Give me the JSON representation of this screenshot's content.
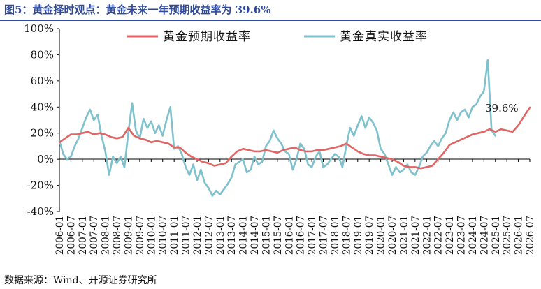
{
  "title": "图5：黄金择时观点：黄金未来一年预期收益率为 39.6%",
  "source": "数据来源：Wind、开源证券研究所",
  "colors": {
    "title": "#2e4a9a",
    "expected": "#e06666",
    "realized": "#7fc1cc",
    "axis": "#000000"
  },
  "chart_data": {
    "type": "line",
    "title": "图5：黄金择时观点：黄金未来一年预期收益率为 39.6%",
    "xlabel": "",
    "ylabel": "",
    "ylim": [
      -40,
      100
    ],
    "yticks": [
      -40,
      -20,
      0,
      20,
      40,
      60,
      80,
      100
    ],
    "ytick_labels": [
      "-40%",
      "-20%",
      "0%",
      "20%",
      "40%",
      "60%",
      "80%",
      "100%"
    ],
    "xlim": [
      "2006-01",
      "2026-07"
    ],
    "xtick_labels": [
      "2006-01",
      "2006-07",
      "2007-01",
      "2007-07",
      "2008-01",
      "2008-07",
      "2009-01",
      "2009-07",
      "2010-01",
      "2010-07",
      "2011-01",
      "2011-07",
      "2012-01",
      "2012-07",
      "2013-01",
      "2013-07",
      "2014-01",
      "2014-07",
      "2015-01",
      "2015-07",
      "2016-01",
      "2016-07",
      "2017-01",
      "2017-07",
      "2018-01",
      "2018-07",
      "2019-01",
      "2019-07",
      "2020-01",
      "2020-07",
      "2021-01",
      "2021-07",
      "2022-01",
      "2022-07",
      "2023-01",
      "2023-07",
      "2024-01",
      "2024-07",
      "2025-01",
      "2025-07",
      "2026-01",
      "2026-07"
    ],
    "grid": false,
    "legend_position": "top",
    "annotations": [
      {
        "text": "39.6%",
        "x": "2026-07",
        "y": 39.6
      }
    ],
    "series": [
      {
        "name": "黄金预期收益率",
        "color": "#e06666",
        "points": [
          [
            "2006-01",
            13
          ],
          [
            "2006-04",
            16
          ],
          [
            "2006-07",
            19
          ],
          [
            "2006-10",
            19
          ],
          [
            "2007-01",
            20
          ],
          [
            "2007-04",
            21
          ],
          [
            "2007-07",
            19
          ],
          [
            "2007-10",
            20
          ],
          [
            "2008-01",
            19
          ],
          [
            "2008-04",
            17
          ],
          [
            "2008-07",
            16
          ],
          [
            "2008-10",
            17
          ],
          [
            "2009-01",
            24
          ],
          [
            "2009-04",
            18
          ],
          [
            "2009-07",
            16
          ],
          [
            "2009-10",
            15
          ],
          [
            "2010-01",
            13
          ],
          [
            "2010-04",
            14
          ],
          [
            "2010-07",
            13
          ],
          [
            "2010-10",
            12
          ],
          [
            "2011-01",
            9
          ],
          [
            "2011-04",
            9
          ],
          [
            "2011-07",
            5
          ],
          [
            "2011-10",
            2
          ],
          [
            "2012-01",
            0
          ],
          [
            "2012-04",
            -2
          ],
          [
            "2012-07",
            -3
          ],
          [
            "2012-10",
            -5
          ],
          [
            "2013-01",
            -4
          ],
          [
            "2013-04",
            -3
          ],
          [
            "2013-07",
            2
          ],
          [
            "2013-10",
            6
          ],
          [
            "2014-01",
            8
          ],
          [
            "2014-04",
            7
          ],
          [
            "2014-07",
            6
          ],
          [
            "2014-10",
            6
          ],
          [
            "2015-01",
            7
          ],
          [
            "2015-04",
            6
          ],
          [
            "2015-07",
            5
          ],
          [
            "2015-10",
            7
          ],
          [
            "2016-01",
            8
          ],
          [
            "2016-04",
            9
          ],
          [
            "2016-07",
            7
          ],
          [
            "2016-10",
            6
          ],
          [
            "2017-01",
            6
          ],
          [
            "2017-04",
            7
          ],
          [
            "2017-07",
            7
          ],
          [
            "2017-10",
            8
          ],
          [
            "2018-01",
            9
          ],
          [
            "2018-04",
            10
          ],
          [
            "2018-07",
            12
          ],
          [
            "2018-10",
            9
          ],
          [
            "2019-01",
            6
          ],
          [
            "2019-04",
            4
          ],
          [
            "2019-07",
            3
          ],
          [
            "2019-10",
            3
          ],
          [
            "2020-01",
            2
          ],
          [
            "2020-04",
            1
          ],
          [
            "2020-07",
            0
          ],
          [
            "2020-10",
            -2
          ],
          [
            "2021-01",
            -5
          ],
          [
            "2021-04",
            -6
          ],
          [
            "2021-07",
            -6
          ],
          [
            "2021-10",
            -7
          ],
          [
            "2022-01",
            -6
          ],
          [
            "2022-04",
            -5
          ],
          [
            "2022-07",
            0
          ],
          [
            "2022-10",
            5
          ],
          [
            "2023-01",
            11
          ],
          [
            "2023-04",
            13
          ],
          [
            "2023-07",
            15
          ],
          [
            "2023-10",
            17
          ],
          [
            "2024-01",
            19
          ],
          [
            "2024-04",
            20
          ],
          [
            "2024-07",
            21
          ],
          [
            "2024-10",
            23
          ],
          [
            "2025-01",
            21
          ],
          [
            "2025-04",
            23
          ],
          [
            "2025-07",
            22
          ],
          [
            "2025-10",
            21
          ],
          [
            "2026-01",
            26
          ],
          [
            "2026-04",
            33
          ],
          [
            "2026-07",
            39.6
          ]
        ]
      },
      {
        "name": "黄金真实收益率",
        "color": "#7fc1cc",
        "points": [
          [
            "2006-01",
            14
          ],
          [
            "2006-03",
            4
          ],
          [
            "2006-05",
            0
          ],
          [
            "2006-07",
            2
          ],
          [
            "2006-09",
            10
          ],
          [
            "2006-11",
            16
          ],
          [
            "2007-01",
            24
          ],
          [
            "2007-03",
            32
          ],
          [
            "2007-05",
            38
          ],
          [
            "2007-07",
            30
          ],
          [
            "2007-09",
            34
          ],
          [
            "2007-11",
            18
          ],
          [
            "2008-01",
            6
          ],
          [
            "2008-03",
            -12
          ],
          [
            "2008-05",
            2
          ],
          [
            "2008-07",
            -3
          ],
          [
            "2008-09",
            2
          ],
          [
            "2008-11",
            -6
          ],
          [
            "2009-01",
            20
          ],
          [
            "2009-03",
            43
          ],
          [
            "2009-05",
            22
          ],
          [
            "2009-07",
            16
          ],
          [
            "2009-09",
            31
          ],
          [
            "2009-11",
            24
          ],
          [
            "2010-01",
            29
          ],
          [
            "2010-03",
            20
          ],
          [
            "2010-05",
            26
          ],
          [
            "2010-07",
            18
          ],
          [
            "2010-09",
            30
          ],
          [
            "2010-11",
            40
          ],
          [
            "2011-01",
            8
          ],
          [
            "2011-03",
            10
          ],
          [
            "2011-05",
            4
          ],
          [
            "2011-07",
            -6
          ],
          [
            "2011-09",
            -12
          ],
          [
            "2011-11",
            -4
          ],
          [
            "2012-01",
            -16
          ],
          [
            "2012-03",
            -8
          ],
          [
            "2012-05",
            -18
          ],
          [
            "2012-07",
            -22
          ],
          [
            "2012-09",
            -28
          ],
          [
            "2012-11",
            -24
          ],
          [
            "2013-01",
            -27
          ],
          [
            "2013-03",
            -23
          ],
          [
            "2013-05",
            -19
          ],
          [
            "2013-07",
            -14
          ],
          [
            "2013-09",
            -4
          ],
          [
            "2013-11",
            -2
          ],
          [
            "2014-01",
            0
          ],
          [
            "2014-03",
            -10
          ],
          [
            "2014-05",
            -8
          ],
          [
            "2014-07",
            2
          ],
          [
            "2014-09",
            -4
          ],
          [
            "2014-11",
            -2
          ],
          [
            "2015-01",
            10
          ],
          [
            "2015-03",
            14
          ],
          [
            "2015-05",
            22
          ],
          [
            "2015-07",
            16
          ],
          [
            "2015-09",
            12
          ],
          [
            "2015-11",
            6
          ],
          [
            "2016-01",
            4
          ],
          [
            "2016-03",
            -8
          ],
          [
            "2016-05",
            0
          ],
          [
            "2016-07",
            12
          ],
          [
            "2016-09",
            8
          ],
          [
            "2016-11",
            -4
          ],
          [
            "2017-01",
            -6
          ],
          [
            "2017-03",
            2
          ],
          [
            "2017-05",
            6
          ],
          [
            "2017-07",
            -6
          ],
          [
            "2017-09",
            -4
          ],
          [
            "2017-11",
            0
          ],
          [
            "2018-01",
            4
          ],
          [
            "2018-03",
            2
          ],
          [
            "2018-05",
            -6
          ],
          [
            "2018-07",
            10
          ],
          [
            "2018-09",
            24
          ],
          [
            "2018-11",
            18
          ],
          [
            "2019-01",
            26
          ],
          [
            "2019-03",
            33
          ],
          [
            "2019-05",
            24
          ],
          [
            "2019-07",
            32
          ],
          [
            "2019-09",
            28
          ],
          [
            "2019-11",
            22
          ],
          [
            "2020-01",
            8
          ],
          [
            "2020-03",
            4
          ],
          [
            "2020-05",
            -4
          ],
          [
            "2020-07",
            -12
          ],
          [
            "2020-09",
            -6
          ],
          [
            "2020-11",
            -10
          ],
          [
            "2021-01",
            -8
          ],
          [
            "2021-03",
            -4
          ],
          [
            "2021-05",
            -10
          ],
          [
            "2021-07",
            -12
          ],
          [
            "2021-09",
            -6
          ],
          [
            "2021-11",
            2
          ],
          [
            "2022-01",
            5
          ],
          [
            "2022-03",
            10
          ],
          [
            "2022-05",
            14
          ],
          [
            "2022-07",
            10
          ],
          [
            "2022-09",
            16
          ],
          [
            "2022-11",
            20
          ],
          [
            "2023-01",
            30
          ],
          [
            "2023-03",
            36
          ],
          [
            "2023-05",
            30
          ],
          [
            "2023-07",
            36
          ],
          [
            "2023-09",
            38
          ],
          [
            "2023-11",
            32
          ],
          [
            "2024-01",
            40
          ],
          [
            "2024-03",
            42
          ],
          [
            "2024-05",
            48
          ],
          [
            "2024-07",
            52
          ],
          [
            "2024-09",
            76
          ],
          [
            "2024-11",
            22
          ],
          [
            "2025-01",
            18
          ]
        ]
      }
    ]
  }
}
